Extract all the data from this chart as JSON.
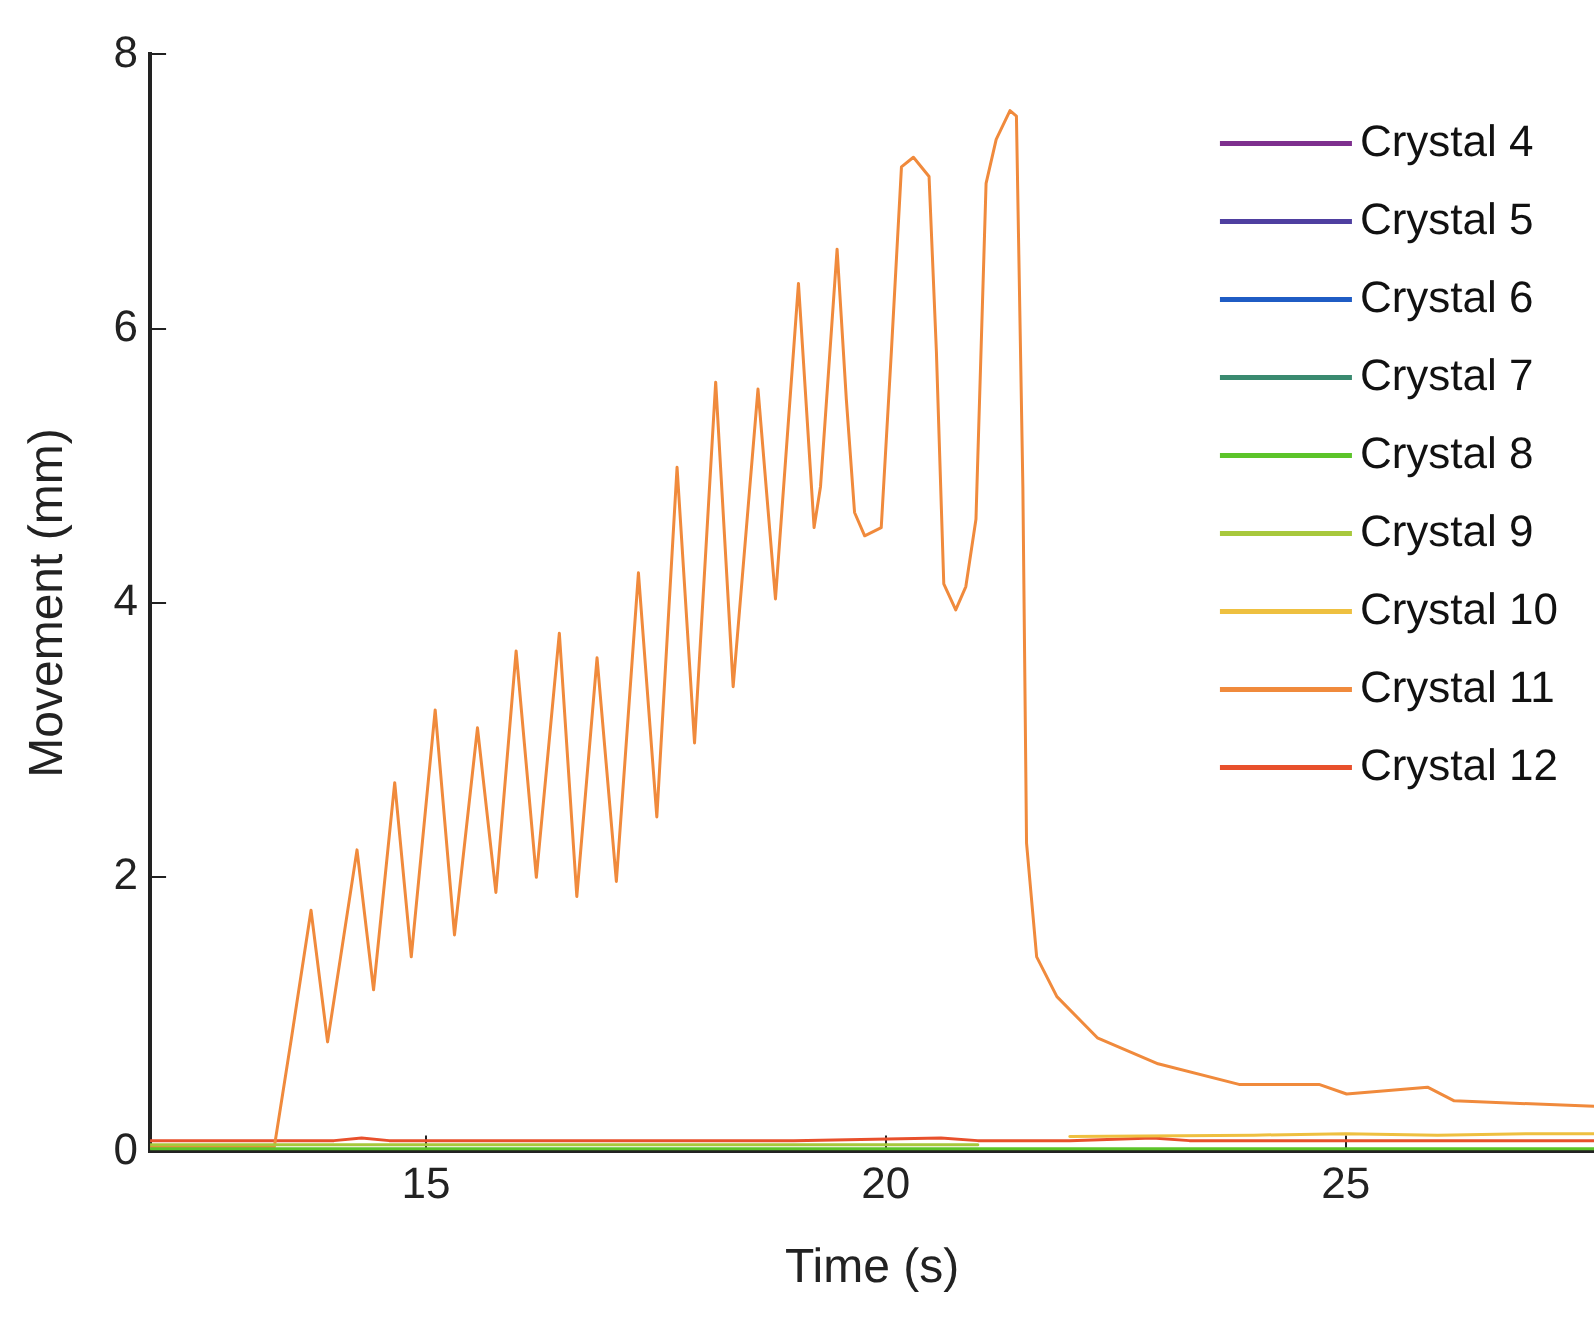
{
  "chart_data": {
    "type": "line",
    "xlabel": "Time (s)",
    "ylabel": "Movement (mm)",
    "xlim": [
      12,
      27.7
    ],
    "xticks": [
      15,
      20,
      25
    ],
    "ylim": [
      0,
      8
    ],
    "yticks": [
      0,
      2,
      4,
      6,
      8
    ],
    "grid": false,
    "legend": "top right",
    "marker": "none",
    "line_style": "solid",
    "series": [
      {
        "name": "Crystal 4",
        "color": "#7e2f8e"
      },
      {
        "name": "Crystal 5",
        "color": "#4f3fa0"
      },
      {
        "name": "Crystal 6",
        "color": "#1f5cc4"
      },
      {
        "name": "Crystal 7",
        "color": "#3a8a70"
      },
      {
        "name": "Crystal 8",
        "color": "#5cc42a",
        "x": [
          12,
          14,
          16,
          18,
          20,
          22,
          24,
          26,
          27.7
        ],
        "values": [
          0.02,
          0.02,
          0.02,
          0.02,
          0.02,
          0.02,
          0.02,
          0.02,
          0.02
        ]
      },
      {
        "name": "Crystal 9",
        "color": "#a8c83c",
        "x": [
          12,
          14,
          16,
          18,
          20,
          21
        ],
        "values": [
          0.05,
          0.05,
          0.05,
          0.05,
          0.05,
          0.05
        ]
      },
      {
        "name": "Crystal 10",
        "color": "#eec040",
        "x": [
          22,
          24,
          25,
          26,
          27,
          27.7
        ],
        "values": [
          0.11,
          0.12,
          0.13,
          0.12,
          0.13,
          0.13
        ]
      },
      {
        "name": "Crystal 11",
        "color": "#f08a3c",
        "x": [
          12,
          13.35,
          13.54,
          13.75,
          13.93,
          14.25,
          14.43,
          14.66,
          14.84,
          15.1,
          15.31,
          15.56,
          15.76,
          15.98,
          16.2,
          16.45,
          16.64,
          16.86,
          17.07,
          17.31,
          17.51,
          17.73,
          17.92,
          18.15,
          18.34,
          18.61,
          18.8,
          19.05,
          19.22,
          19.29,
          19.47,
          19.57,
          19.66,
          19.77,
          19.95,
          20.06,
          20.17,
          20.3,
          20.47,
          20.55,
          20.63,
          20.76,
          20.87,
          20.98,
          21.09,
          21.2,
          21.35,
          21.42,
          21.49,
          21.53,
          21.6,
          21.64,
          21.86,
          22.3,
          22.96,
          23.84,
          24.71,
          25.01,
          25.89,
          26.18,
          27.7
        ],
        "values": [
          0.03,
          0.03,
          0.84,
          1.76,
          0.8,
          2.2,
          1.18,
          2.69,
          1.42,
          3.22,
          1.58,
          3.09,
          1.89,
          3.65,
          2.0,
          3.78,
          1.86,
          3.6,
          1.97,
          4.22,
          2.44,
          4.99,
          2.98,
          5.61,
          3.39,
          5.56,
          4.03,
          6.33,
          4.55,
          4.85,
          6.58,
          5.49,
          4.66,
          4.49,
          4.55,
          5.83,
          7.18,
          7.25,
          7.11,
          5.83,
          4.14,
          3.95,
          4.12,
          4.61,
          7.06,
          7.38,
          7.59,
          7.55,
          4.85,
          2.25,
          1.72,
          1.42,
          1.13,
          0.83,
          0.64,
          0.49,
          0.49,
          0.42,
          0.47,
          0.37,
          0.33
        ]
      },
      {
        "name": "Crystal 12",
        "color": "#e8502c",
        "x": [
          12,
          13,
          14,
          14.3,
          14.6,
          16,
          17.5,
          19,
          20.6,
          21,
          22,
          22.9,
          23.3,
          24,
          25,
          26,
          27.7
        ],
        "values": [
          0.08,
          0.08,
          0.08,
          0.1,
          0.08,
          0.08,
          0.08,
          0.08,
          0.1,
          0.08,
          0.08,
          0.1,
          0.08,
          0.08,
          0.08,
          0.08,
          0.08
        ]
      }
    ]
  }
}
